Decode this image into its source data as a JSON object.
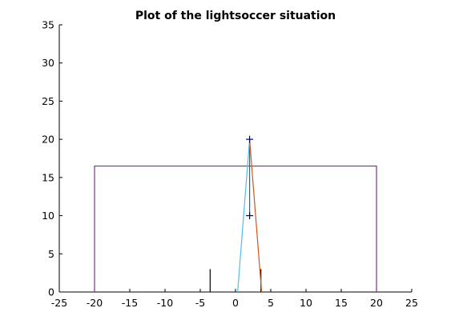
{
  "chart_data": {
    "type": "line",
    "title": "Plot of the lightsoccer situation",
    "xlabel": "",
    "ylabel": "",
    "xlim": [
      -25,
      25
    ],
    "ylim": [
      0,
      35
    ],
    "x_ticks": [
      -25,
      -20,
      -15,
      -10,
      -5,
      0,
      5,
      10,
      15,
      20,
      25
    ],
    "y_ticks": [
      0,
      5,
      10,
      15,
      20,
      25,
      30,
      35
    ],
    "x_tick_labels": [
      "-25",
      "-20",
      "-15",
      "-10",
      "-5",
      "0",
      "5",
      "10",
      "15",
      "20",
      "25"
    ],
    "y_tick_labels": [
      "0",
      "5",
      "10",
      "15",
      "20",
      "25",
      "30",
      "35"
    ],
    "grid": false,
    "series": [
      {
        "kind": "line",
        "color": "#7e2f8e",
        "x": [
          -20,
          -20,
          20,
          20
        ],
        "y": [
          0,
          16.5,
          16.5,
          0
        ]
      },
      {
        "kind": "line",
        "color": "#000000",
        "x": [
          -3.6,
          -3.6
        ],
        "y": [
          0,
          3
        ]
      },
      {
        "kind": "line",
        "color": "#000000",
        "x": [
          3.6,
          3.6
        ],
        "y": [
          0,
          3
        ]
      },
      {
        "kind": "line",
        "color": "#0072bd",
        "x": [
          2,
          2
        ],
        "y": [
          10,
          20
        ]
      },
      {
        "kind": "line",
        "color": "#4dbeee",
        "x": [
          0.3,
          2
        ],
        "y": [
          0,
          20
        ]
      },
      {
        "kind": "line",
        "color": "#d95319",
        "x": [
          2,
          3.7
        ],
        "y": [
          20,
          0
        ]
      },
      {
        "kind": "markers",
        "marker": "+",
        "color": "#00008b",
        "x": [
          2,
          2
        ],
        "y": [
          20,
          10
        ]
      }
    ]
  }
}
